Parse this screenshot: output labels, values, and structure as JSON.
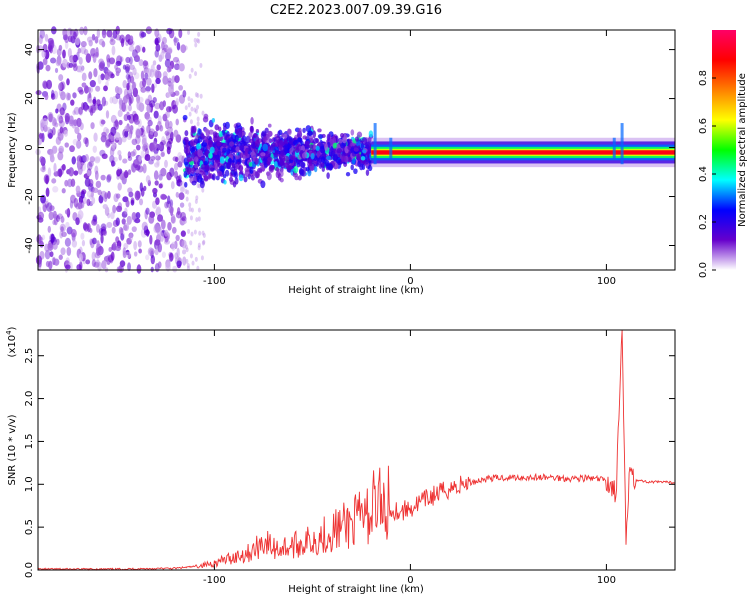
{
  "title": "C2E2.2023.007.09.39.G16",
  "chart_data": [
    {
      "type": "heatmap",
      "xlabel": "Height of straight line (km)",
      "ylabel": "Frequency (Hz)",
      "xlim": [
        -190,
        135
      ],
      "ylim": [
        -50,
        48
      ],
      "xticks": [
        -100,
        0,
        100
      ],
      "yticks": [
        -40,
        -20,
        0,
        20,
        40
      ],
      "colorbar": {
        "label": "Normalized spectral amplitude",
        "range": [
          0.0,
          1.0
        ],
        "ticks": [
          0.0,
          0.2,
          0.4,
          0.6,
          0.8
        ],
        "colormap": [
          "#ffffff",
          "#6600cc",
          "#0000ff",
          "#00ffff",
          "#00ff00",
          "#ffff00",
          "#ff8000",
          "#ff0000",
          "#ff0066"
        ]
      },
      "regions": [
        {
          "x_range": [
            -190,
            -115
          ],
          "description": "scattered noise",
          "max_amplitude": 0.1
        },
        {
          "x_range": [
            -115,
            -20
          ],
          "frequency_center": -2,
          "amplitude": 0.2
        },
        {
          "x_range": [
            -20,
            135
          ],
          "frequency_center": -2,
          "amplitude": 0.9
        }
      ]
    },
    {
      "type": "line",
      "xlabel": "Height of straight line (km)",
      "ylabel": "SNR (10 * v/v)",
      "multiplier": "(x10",
      "multiplier_exp": "4",
      "multiplier_close": ")",
      "xlim": [
        -190,
        135
      ],
      "ylim": [
        0,
        2.8
      ],
      "xticks": [
        -100,
        0,
        100
      ],
      "yticks": [
        0.0,
        0.5,
        1.0,
        1.5,
        2.0,
        2.5
      ],
      "color": "#ee3333",
      "series": [
        {
          "x": [
            -190,
            -150,
            -120,
            -110,
            -100,
            -90,
            -80,
            -75,
            -70,
            -60,
            -50,
            -40,
            -30,
            -20,
            -15,
            -10,
            -5,
            0,
            10,
            20,
            30,
            40,
            50,
            60,
            70,
            80,
            90,
            100,
            105,
            108,
            110,
            112,
            115,
            120,
            135
          ],
          "y": [
            0.01,
            0.01,
            0.02,
            0.04,
            0.08,
            0.15,
            0.22,
            0.35,
            0.25,
            0.28,
            0.35,
            0.45,
            0.55,
            0.65,
            0.7,
            0.72,
            0.68,
            0.72,
            0.85,
            0.95,
            1.02,
            1.07,
            1.08,
            1.08,
            1.08,
            1.07,
            1.07,
            1.05,
            0.9,
            2.8,
            0.25,
            1.3,
            1.05,
            1.03,
            1.02
          ]
        }
      ]
    }
  ]
}
